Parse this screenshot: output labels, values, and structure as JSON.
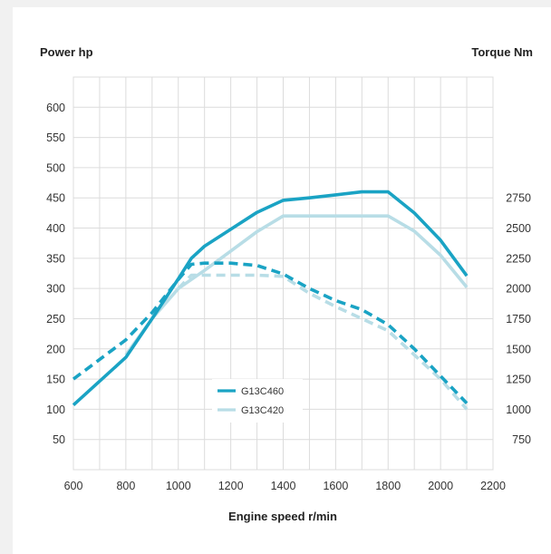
{
  "chart_data": {
    "type": "line",
    "xlabel": "Engine speed r/min",
    "y_left_label": "Power hp",
    "y_right_label": "Torque Nm",
    "xlim": [
      600,
      2200
    ],
    "x_ticks": [
      600,
      800,
      1000,
      1200,
      1400,
      1600,
      1800,
      2000,
      2200
    ],
    "y_left_lim": [
      0,
      650
    ],
    "y_left_ticks": [
      50,
      100,
      150,
      200,
      250,
      300,
      350,
      400,
      450,
      500,
      550,
      600
    ],
    "y_right_ticks": [
      750,
      1000,
      1250,
      1500,
      1750,
      2000,
      2250,
      2500,
      2750
    ],
    "y_right_scale": {
      "hp": [
        50,
        450
      ],
      "nm": [
        750,
        2750
      ]
    },
    "grid": true,
    "legend": [
      {
        "name": "G13C460",
        "color": "#1aa3c4"
      },
      {
        "name": "G13C420",
        "color": "#b8dde6"
      }
    ],
    "series": [
      {
        "name": "G13C460",
        "measure": "Power hp",
        "style": "solid",
        "color": "#1aa3c4",
        "x": [
          600,
          800,
          900,
          1000,
          1050,
          1100,
          1200,
          1300,
          1400,
          1500,
          1600,
          1700,
          1800,
          1900,
          2000,
          2100
        ],
        "values": [
          107,
          186,
          250,
          316,
          350,
          370,
          398,
          426,
          446,
          450,
          455,
          460,
          460,
          425,
          380,
          321
        ]
      },
      {
        "name": "G13C420",
        "measure": "Power hp",
        "style": "solid",
        "color": "#b8dde6",
        "x": [
          800,
          900,
          1000,
          1100,
          1200,
          1300,
          1400,
          1500,
          1600,
          1700,
          1800,
          1900,
          2000,
          2100
        ],
        "values": [
          190,
          250,
          300,
          330,
          362,
          394,
          420,
          420,
          420,
          420,
          420,
          395,
          355,
          302
        ]
      },
      {
        "name": "G13C460",
        "measure": "Torque Nm",
        "style": "dashed",
        "color": "#1aa3c4",
        "x": [
          600,
          800,
          900,
          1000,
          1050,
          1100,
          1200,
          1300,
          1400,
          1500,
          1600,
          1700,
          1800,
          1900,
          2000,
          2100
        ],
        "values": [
          1250,
          1575,
          1800,
          2075,
          2200,
          2210,
          2210,
          2190,
          2120,
          2000,
          1900,
          1825,
          1700,
          1500,
          1275,
          1050
        ]
      },
      {
        "name": "G13C420",
        "measure": "Torque Nm",
        "style": "dashed",
        "color": "#b8dde6",
        "x": [
          1000,
          1050,
          1100,
          1200,
          1300,
          1400,
          1500,
          1600,
          1700,
          1800,
          1900,
          2000,
          2100
        ],
        "values": [
          2000,
          2110,
          2110,
          2110,
          2110,
          2100,
          1960,
          1850,
          1750,
          1650,
          1450,
          1250,
          1000
        ]
      }
    ]
  }
}
